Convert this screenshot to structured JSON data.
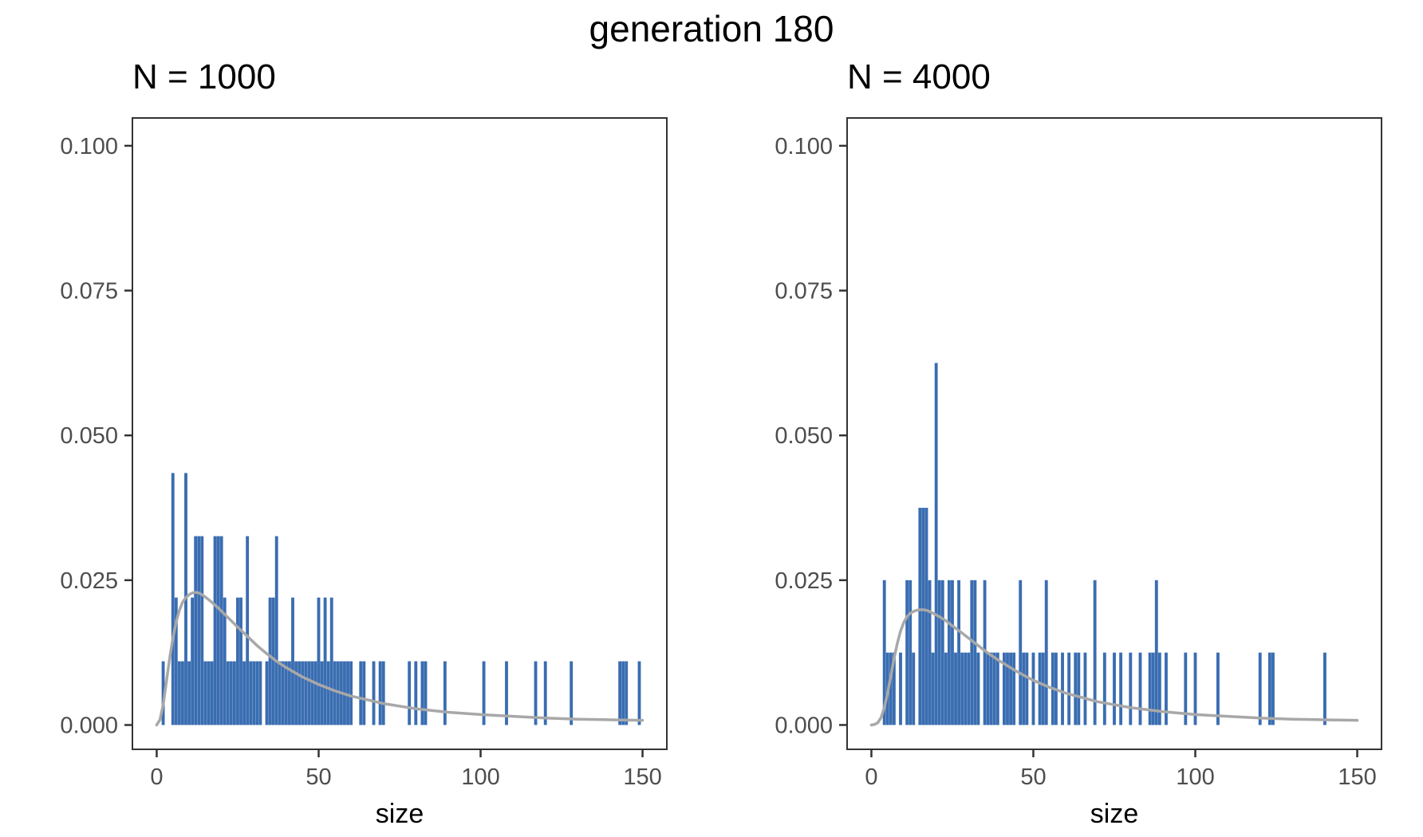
{
  "figure": {
    "title": "generation 180"
  },
  "colors": {
    "bar": "#3a6db1",
    "curve": "#a8a8a8",
    "frame": "#333333",
    "tick": "#333333"
  },
  "chart_data": [
    {
      "type": "bar",
      "title": "N = 1000",
      "xlabel": "size",
      "ylabel": "",
      "xlim": [
        -7.5,
        157.5
      ],
      "ylim": [
        -0.0042,
        0.1048
      ],
      "xticks": [
        0,
        50,
        100,
        150
      ],
      "xtick_labels": [
        "0",
        "50",
        "100",
        "150"
      ],
      "yticks": [
        0,
        0.025,
        0.05,
        0.075,
        0.1
      ],
      "ytick_labels": [
        "0.000",
        "0.025",
        "0.050",
        "0.075",
        "0.100"
      ],
      "grid": false,
      "legend": "none",
      "series": [
        {
          "kind": "bars",
          "x": [
            2,
            5,
            6,
            7,
            8,
            9,
            10,
            11,
            12,
            13,
            14,
            15,
            16,
            17,
            18,
            19,
            20,
            21,
            22,
            23,
            24,
            25,
            26,
            27,
            28,
            29,
            30,
            31,
            32,
            34,
            35,
            36,
            37,
            38,
            39,
            40,
            41,
            42,
            43,
            44,
            45,
            46,
            47,
            48,
            49,
            50,
            51,
            52,
            53,
            54,
            55,
            56,
            57,
            58,
            59,
            60,
            63,
            64,
            67,
            69,
            70,
            78,
            80,
            82,
            83,
            89,
            101,
            108,
            117,
            120,
            128,
            143,
            144,
            145,
            149
          ],
          "values": [
            0.011,
            0.0435,
            0.022,
            0.011,
            0.011,
            0.0435,
            0.011,
            0.022,
            0.0326,
            0.0326,
            0.0326,
            0.011,
            0.011,
            0.011,
            0.0326,
            0.0326,
            0.0326,
            0.022,
            0.011,
            0.011,
            0.011,
            0.022,
            0.022,
            0.011,
            0.0326,
            0.011,
            0.011,
            0.011,
            0.011,
            0.011,
            0.022,
            0.022,
            0.0326,
            0.011,
            0.011,
            0.011,
            0.011,
            0.022,
            0.011,
            0.011,
            0.011,
            0.011,
            0.011,
            0.011,
            0.011,
            0.022,
            0.011,
            0.022,
            0.011,
            0.022,
            0.011,
            0.011,
            0.011,
            0.011,
            0.011,
            0.011,
            0.011,
            0.011,
            0.011,
            0.011,
            0.011,
            0.011,
            0.011,
            0.011,
            0.011,
            0.011,
            0.011,
            0.011,
            0.011,
            0.011,
            0.011,
            0.011,
            0.011,
            0.011,
            0.011
          ]
        },
        {
          "kind": "line",
          "x": [
            0,
            1,
            2,
            3,
            4,
            5,
            6,
            7,
            8,
            9,
            10,
            11,
            12,
            13,
            14,
            15,
            17,
            19,
            21,
            23,
            25,
            28,
            31,
            34,
            37,
            40,
            45,
            50,
            55,
            60,
            70,
            80,
            90,
            100,
            110,
            120,
            130,
            140,
            150
          ],
          "values": [
            0.0,
            0.0009,
            0.0035,
            0.0075,
            0.0115,
            0.015,
            0.0178,
            0.0198,
            0.0212,
            0.022,
            0.0225,
            0.0228,
            0.0229,
            0.0228,
            0.0225,
            0.0221,
            0.0212,
            0.0202,
            0.0191,
            0.018,
            0.0169,
            0.0153,
            0.0137,
            0.0123,
            0.011,
            0.0099,
            0.0083,
            0.007,
            0.0059,
            0.005,
            0.0037,
            0.0028,
            0.0022,
            0.0018,
            0.0015,
            0.0012,
            0.001,
            0.0009,
            0.0008
          ]
        }
      ]
    },
    {
      "type": "bar",
      "title": "N = 4000",
      "xlabel": "size",
      "ylabel": "",
      "xlim": [
        -7.5,
        157.5
      ],
      "ylim": [
        -0.0042,
        0.1048
      ],
      "xticks": [
        0,
        50,
        100,
        150
      ],
      "xtick_labels": [
        "0",
        "50",
        "100",
        "150"
      ],
      "yticks": [
        0,
        0.025,
        0.05,
        0.075,
        0.1
      ],
      "ytick_labels": [
        "0.000",
        "0.025",
        "0.050",
        "0.075",
        "0.100"
      ],
      "grid": false,
      "legend": "none",
      "series": [
        {
          "kind": "bars",
          "x": [
            4,
            5,
            6,
            7,
            9,
            11,
            12,
            13,
            15,
            16,
            17,
            18,
            19,
            20,
            21,
            22,
            23,
            24,
            25,
            26,
            27,
            28,
            29,
            30,
            31,
            32,
            33,
            35,
            36,
            37,
            38,
            39,
            41,
            42,
            43,
            44,
            46,
            47,
            48,
            50,
            52,
            53,
            54,
            56,
            57,
            59,
            61,
            63,
            64,
            66,
            69,
            72,
            75,
            77,
            80,
            83,
            86,
            87,
            88,
            89,
            91,
            97,
            100,
            107,
            120,
            123,
            124,
            140
          ],
          "values": [
            0.025,
            0.0125,
            0.0125,
            0.0125,
            0.0125,
            0.025,
            0.025,
            0.0125,
            0.0375,
            0.0375,
            0.0375,
            0.025,
            0.0125,
            0.0625,
            0.025,
            0.025,
            0.0125,
            0.025,
            0.025,
            0.0125,
            0.025,
            0.0125,
            0.0125,
            0.0125,
            0.025,
            0.025,
            0.0125,
            0.025,
            0.0125,
            0.0125,
            0.0125,
            0.0125,
            0.0125,
            0.0125,
            0.0125,
            0.0125,
            0.025,
            0.0125,
            0.0125,
            0.0125,
            0.0125,
            0.0125,
            0.025,
            0.0125,
            0.0125,
            0.0125,
            0.0125,
            0.0125,
            0.0125,
            0.0125,
            0.025,
            0.0125,
            0.0125,
            0.0125,
            0.0125,
            0.0125,
            0.0125,
            0.0125,
            0.025,
            0.0125,
            0.0125,
            0.0125,
            0.0125,
            0.0125,
            0.0125,
            0.0125,
            0.0125,
            0.0125
          ]
        },
        {
          "kind": "line",
          "x": [
            0,
            1,
            2,
            3,
            4,
            5,
            6,
            7,
            8,
            9,
            10,
            11,
            12,
            13,
            14,
            15,
            16,
            17,
            18,
            19,
            20,
            21,
            23,
            25,
            27,
            30,
            33,
            36,
            40,
            45,
            50,
            55,
            60,
            70,
            80,
            90,
            100,
            110,
            120,
            130,
            140,
            150
          ],
          "values": [
            0.0,
            0.0001,
            0.0004,
            0.0013,
            0.003,
            0.0055,
            0.0085,
            0.0115,
            0.0141,
            0.0162,
            0.0177,
            0.0187,
            0.0193,
            0.0196,
            0.0198,
            0.0199,
            0.0199,
            0.0198,
            0.0196,
            0.0193,
            0.019,
            0.0187,
            0.018,
            0.0171,
            0.0163,
            0.015,
            0.0137,
            0.0124,
            0.0109,
            0.0092,
            0.0077,
            0.0065,
            0.0055,
            0.004,
            0.003,
            0.0023,
            0.0018,
            0.0015,
            0.0012,
            0.001,
            0.0009,
            0.0008
          ]
        }
      ]
    }
  ]
}
